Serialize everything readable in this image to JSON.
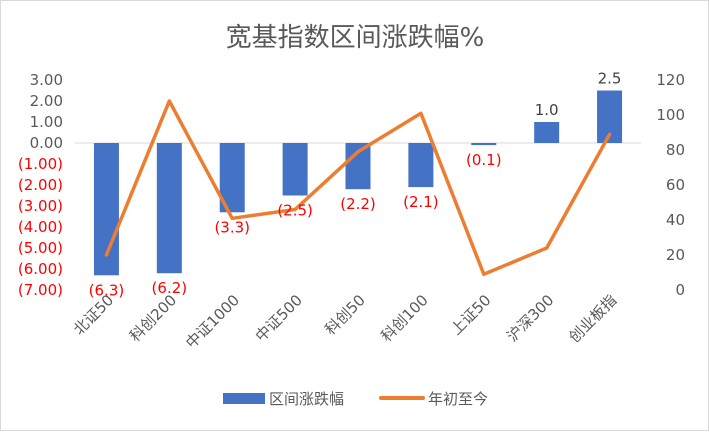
{
  "chart_data": {
    "type": "bar+line",
    "title": "宽基指数区间涨跌幅%",
    "categories": [
      "北证50",
      "科创200",
      "中证1000",
      "中证500",
      "科创50",
      "科创100",
      "上证50",
      "沪深300",
      "创业板指"
    ],
    "series": [
      {
        "name": "区间涨跌幅",
        "type": "bar",
        "axis": "left",
        "color": "#4472c4",
        "values": [
          -6.3,
          -6.2,
          -3.3,
          -2.5,
          -2.2,
          -2.1,
          -0.1,
          1.0,
          2.5
        ],
        "labels": [
          "(6.3)",
          "(6.2)",
          "(3.3)",
          "(2.5)",
          "(2.2)",
          "(2.1)",
          "(0.1)",
          "1.0",
          "2.5"
        ]
      },
      {
        "name": "年初至今",
        "type": "line",
        "axis": "right",
        "color": "#ed7d31",
        "values": [
          20,
          108,
          41,
          46,
          79,
          101,
          9,
          24,
          89
        ]
      }
    ],
    "left_axis": {
      "ylim": [
        -7,
        3
      ],
      "ticks": [
        3,
        2,
        1,
        0,
        -1,
        -2,
        -3,
        -4,
        -5,
        -6,
        -7
      ],
      "tick_labels": [
        "3.00",
        "2.00",
        "1.00",
        "0.00",
        "(1.00)",
        "(2.00)",
        "(3.00)",
        "(4.00)",
        "(5.00)",
        "(6.00)",
        "(7.00)"
      ],
      "negative_color": "#ff0000"
    },
    "right_axis": {
      "ylim": [
        0,
        120
      ],
      "ticks": [
        120,
        100,
        80,
        60,
        40,
        20,
        0
      ],
      "tick_labels": [
        "120",
        "100",
        "80",
        "60",
        "40",
        "20",
        "0"
      ]
    },
    "label_colors": {
      "negative": "#ff0000",
      "positive": "#404040"
    },
    "grid": false,
    "legend": "bottom"
  }
}
